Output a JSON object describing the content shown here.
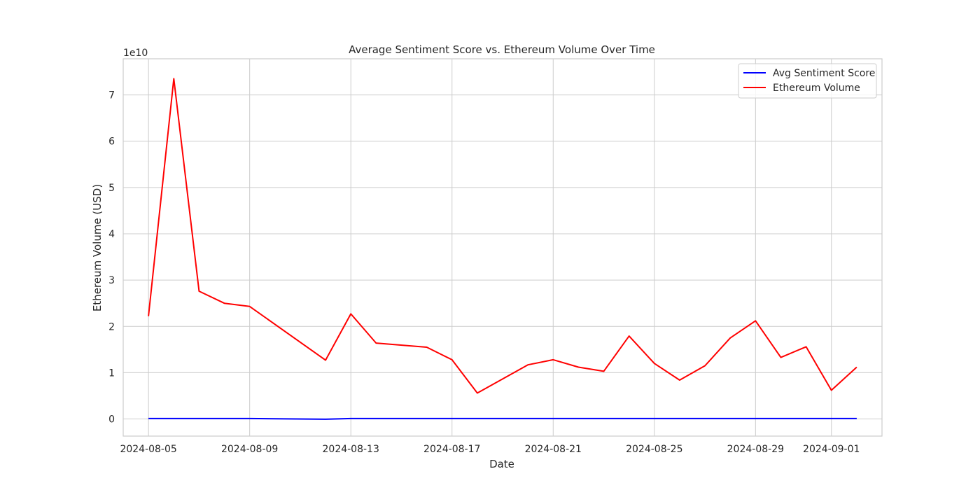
{
  "chart_data": {
    "type": "line",
    "title": "Average Sentiment Score vs. Ethereum Volume Over Time",
    "xlabel": "Date",
    "ylabel": "Ethereum Volume (USD)",
    "y_offset_text": "1e10",
    "y_scale_factor": 10000000000,
    "ylim": [
      -0.37,
      7.78
    ],
    "xlim": [
      "2024-08-04",
      "2024-09-03"
    ],
    "grid": true,
    "legend_position": "top-right",
    "x_ticks": [
      "2024-08-05",
      "2024-08-09",
      "2024-08-13",
      "2024-08-17",
      "2024-08-21",
      "2024-08-25",
      "2024-08-29",
      "2024-09-01"
    ],
    "y_ticks": [
      "0",
      "1",
      "2",
      "3",
      "4",
      "5",
      "6",
      "7"
    ],
    "series": [
      {
        "name": "Avg Sentiment Score",
        "color": "#0000ff",
        "x": [
          "2024-08-05",
          "2024-08-06",
          "2024-08-07",
          "2024-08-08",
          "2024-08-09",
          "2024-08-12",
          "2024-08-13",
          "2024-08-14",
          "2024-08-16",
          "2024-08-17",
          "2024-08-18",
          "2024-08-20",
          "2024-08-21",
          "2024-08-22",
          "2024-08-23",
          "2024-08-24",
          "2024-08-25",
          "2024-08-26",
          "2024-08-27",
          "2024-08-28",
          "2024-08-29",
          "2024-08-30",
          "2024-08-31",
          "2024-09-01",
          "2024-09-02"
        ],
        "values": [
          0.01,
          0.01,
          0.01,
          0.01,
          0.01,
          -0.005,
          0.01,
          0.01,
          0.01,
          0.01,
          0.01,
          0.01,
          0.01,
          0.01,
          0.01,
          0.01,
          0.01,
          0.01,
          0.01,
          0.01,
          0.01,
          0.01,
          0.01,
          0.01,
          0.01
        ]
      },
      {
        "name": "Ethereum Volume",
        "color": "#ff0000",
        "x": [
          "2024-08-05",
          "2024-08-06",
          "2024-08-07",
          "2024-08-08",
          "2024-08-09",
          "2024-08-12",
          "2024-08-13",
          "2024-08-14",
          "2024-08-16",
          "2024-08-17",
          "2024-08-18",
          "2024-08-20",
          "2024-08-21",
          "2024-08-22",
          "2024-08-23",
          "2024-08-24",
          "2024-08-25",
          "2024-08-26",
          "2024-08-27",
          "2024-08-28",
          "2024-08-29",
          "2024-08-30",
          "2024-08-31",
          "2024-09-01",
          "2024-09-02"
        ],
        "values": [
          2.22,
          7.35,
          2.76,
          2.5,
          2.43,
          1.27,
          2.27,
          1.64,
          1.55,
          1.28,
          0.56,
          1.17,
          1.28,
          1.12,
          1.03,
          1.79,
          1.2,
          0.84,
          1.15,
          1.75,
          2.12,
          1.33,
          1.56,
          0.62,
          1.12
        ]
      }
    ]
  }
}
